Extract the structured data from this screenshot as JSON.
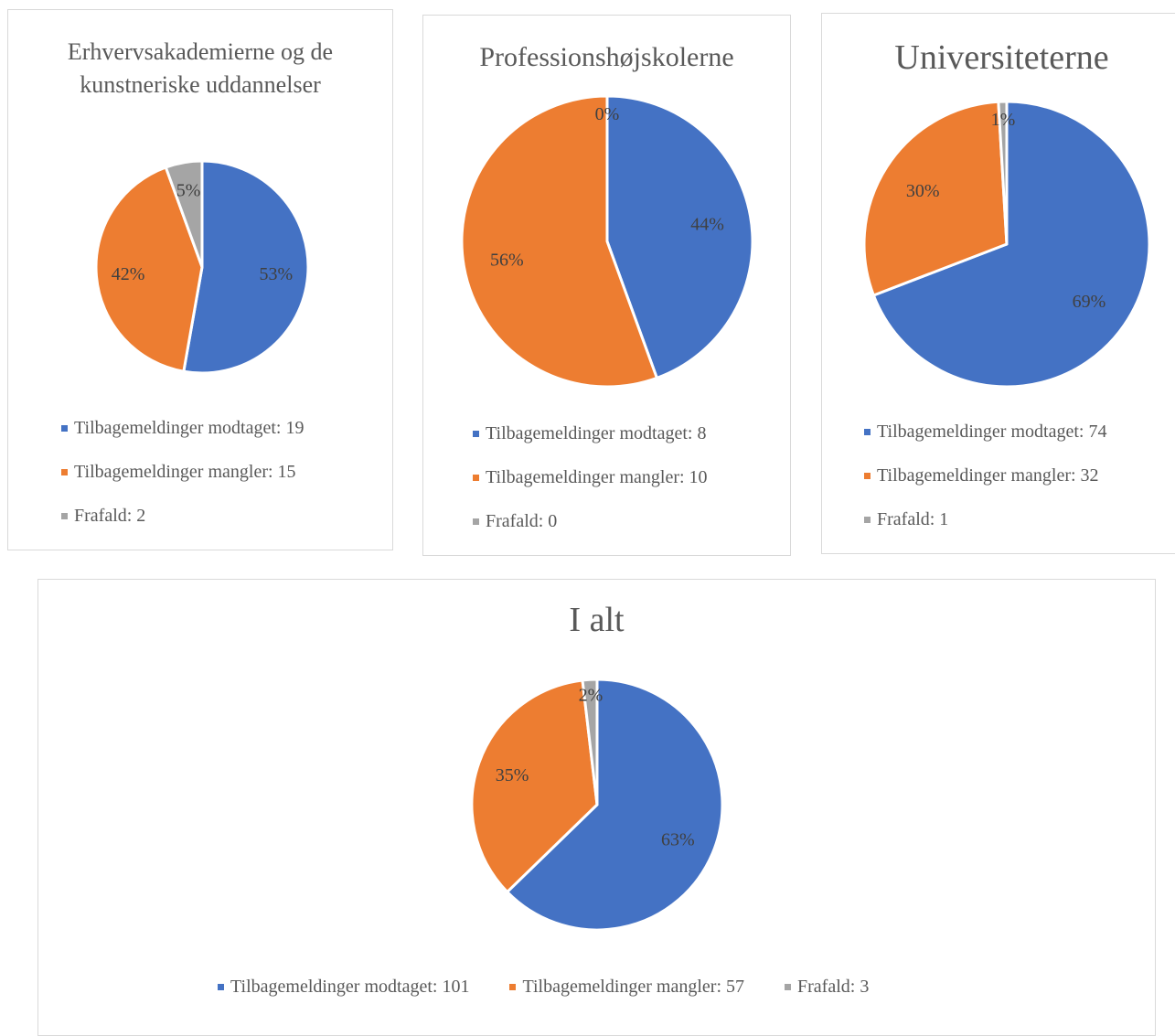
{
  "chart_data": [
    {
      "type": "pie",
      "title": "Erhvervsakademierne og de kunstneriske uddannelser",
      "categories": [
        "Tilbagemeldinger modtaget",
        "Tilbagemeldinger mangler",
        "Frafald"
      ],
      "values": [
        19,
        15,
        2
      ],
      "data_labels": [
        "53%",
        "42%",
        "5%"
      ],
      "legend_labels": [
        "Tilbagemeldinger modtaget: 19",
        "Tilbagemeldinger mangler: 15",
        "Frafald: 2"
      ],
      "colors": [
        "#4472c4",
        "#ed7d31",
        "#a5a5a5"
      ],
      "legend_position": "bottom"
    },
    {
      "type": "pie",
      "title": "Professionshøjskolerne",
      "categories": [
        "Tilbagemeldinger modtaget",
        "Tilbagemeldinger mangler",
        "Frafald"
      ],
      "values": [
        8,
        10,
        0
      ],
      "data_labels": [
        "44%",
        "56%",
        "0%"
      ],
      "legend_labels": [
        "Tilbagemeldinger modtaget: 8",
        "Tilbagemeldinger mangler: 10",
        "Frafald: 0"
      ],
      "colors": [
        "#4472c4",
        "#ed7d31",
        "#a5a5a5"
      ],
      "legend_position": "bottom"
    },
    {
      "type": "pie",
      "title": "Universiteterne",
      "categories": [
        "Tilbagemeldinger modtaget",
        "Tilbagemeldinger mangler",
        "Frafald"
      ],
      "values": [
        74,
        32,
        1
      ],
      "data_labels": [
        "69%",
        "30%",
        "1%"
      ],
      "legend_labels": [
        "Tilbagemeldinger modtaget: 74",
        "Tilbagemeldinger mangler: 32",
        "Frafald: 1"
      ],
      "colors": [
        "#4472c4",
        "#ed7d31",
        "#a5a5a5"
      ],
      "legend_position": "bottom"
    },
    {
      "type": "pie",
      "title": "I alt",
      "categories": [
        "Tilbagemeldinger modtaget",
        "Tilbagemeldinger mangler",
        "Frafald"
      ],
      "values": [
        101,
        57,
        3
      ],
      "data_labels": [
        "63%",
        "35%",
        "2%"
      ],
      "legend_labels": [
        "Tilbagemeldinger modtaget: 101",
        "Tilbagemeldinger mangler: 57",
        "Frafald: 3"
      ],
      "colors": [
        "#4472c4",
        "#ed7d31",
        "#a5a5a5"
      ],
      "legend_position": "bottom"
    }
  ]
}
